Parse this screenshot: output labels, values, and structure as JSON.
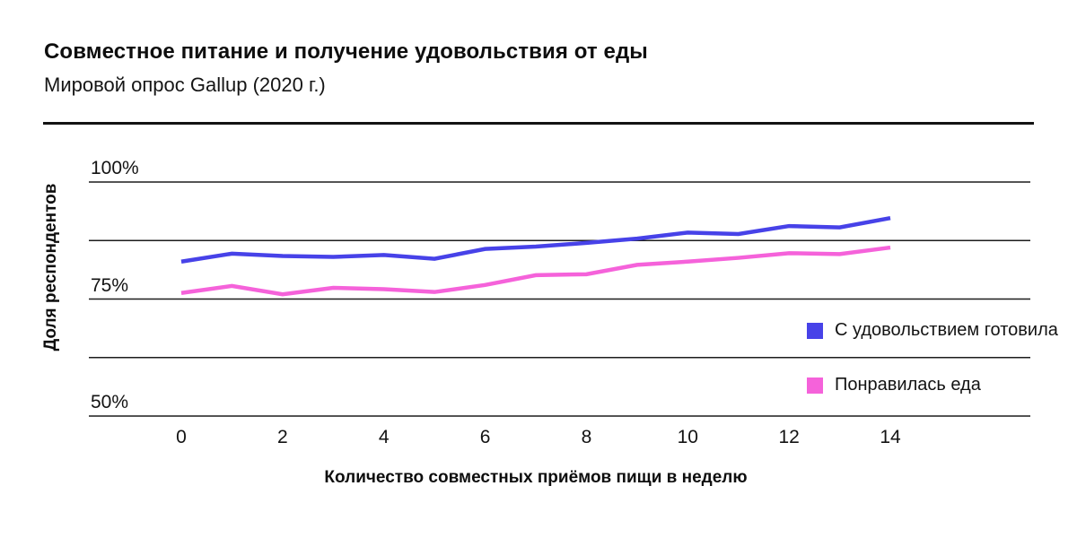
{
  "header": {
    "title": "Совместное питание и получение удовольствия от еды",
    "subtitle": "Мировой опрос Gallup (2020 г.)"
  },
  "chart_data": {
    "type": "line",
    "title": "Совместное питание и получение удовольствия от еды",
    "subtitle": "Мировой опрос Gallup (2020 г.)",
    "xlabel": "Количество совместных приёмов пищи в неделю",
    "ylabel": "Доля респондентов",
    "x": [
      0,
      1,
      2,
      3,
      4,
      5,
      6,
      7,
      8,
      9,
      10,
      11,
      12,
      13,
      14
    ],
    "x_tick_values": [
      0,
      2,
      4,
      6,
      8,
      10,
      12,
      14
    ],
    "x_tick_labels": [
      "0",
      "2",
      "4",
      "6",
      "8",
      "10",
      "12",
      "14"
    ],
    "ylim": [
      50,
      100
    ],
    "xlim": [
      0,
      14
    ],
    "y_gridline_values": [
      100,
      87.5,
      75,
      62.5,
      50
    ],
    "y_ticks": [
      {
        "value": 100,
        "label": "100%"
      },
      {
        "value": 75,
        "label": "75%"
      },
      {
        "value": 50,
        "label": "50%"
      }
    ],
    "grid": "horizontal-only",
    "legend_position": "inside-right",
    "series": [
      {
        "name": "С удовольствием готовила",
        "color": "#4742e8",
        "values": [
          83.0,
          84.7,
          84.2,
          84.0,
          84.4,
          83.6,
          85.7,
          86.2,
          87.0,
          87.9,
          89.2,
          88.9,
          90.6,
          90.3,
          92.3
        ]
      },
      {
        "name": "Понравилась еда",
        "color": "#f562da",
        "values": [
          76.3,
          77.8,
          76.0,
          77.4,
          77.1,
          76.5,
          78.0,
          80.1,
          80.3,
          82.3,
          83.0,
          83.8,
          84.8,
          84.6,
          86.0
        ]
      }
    ]
  }
}
